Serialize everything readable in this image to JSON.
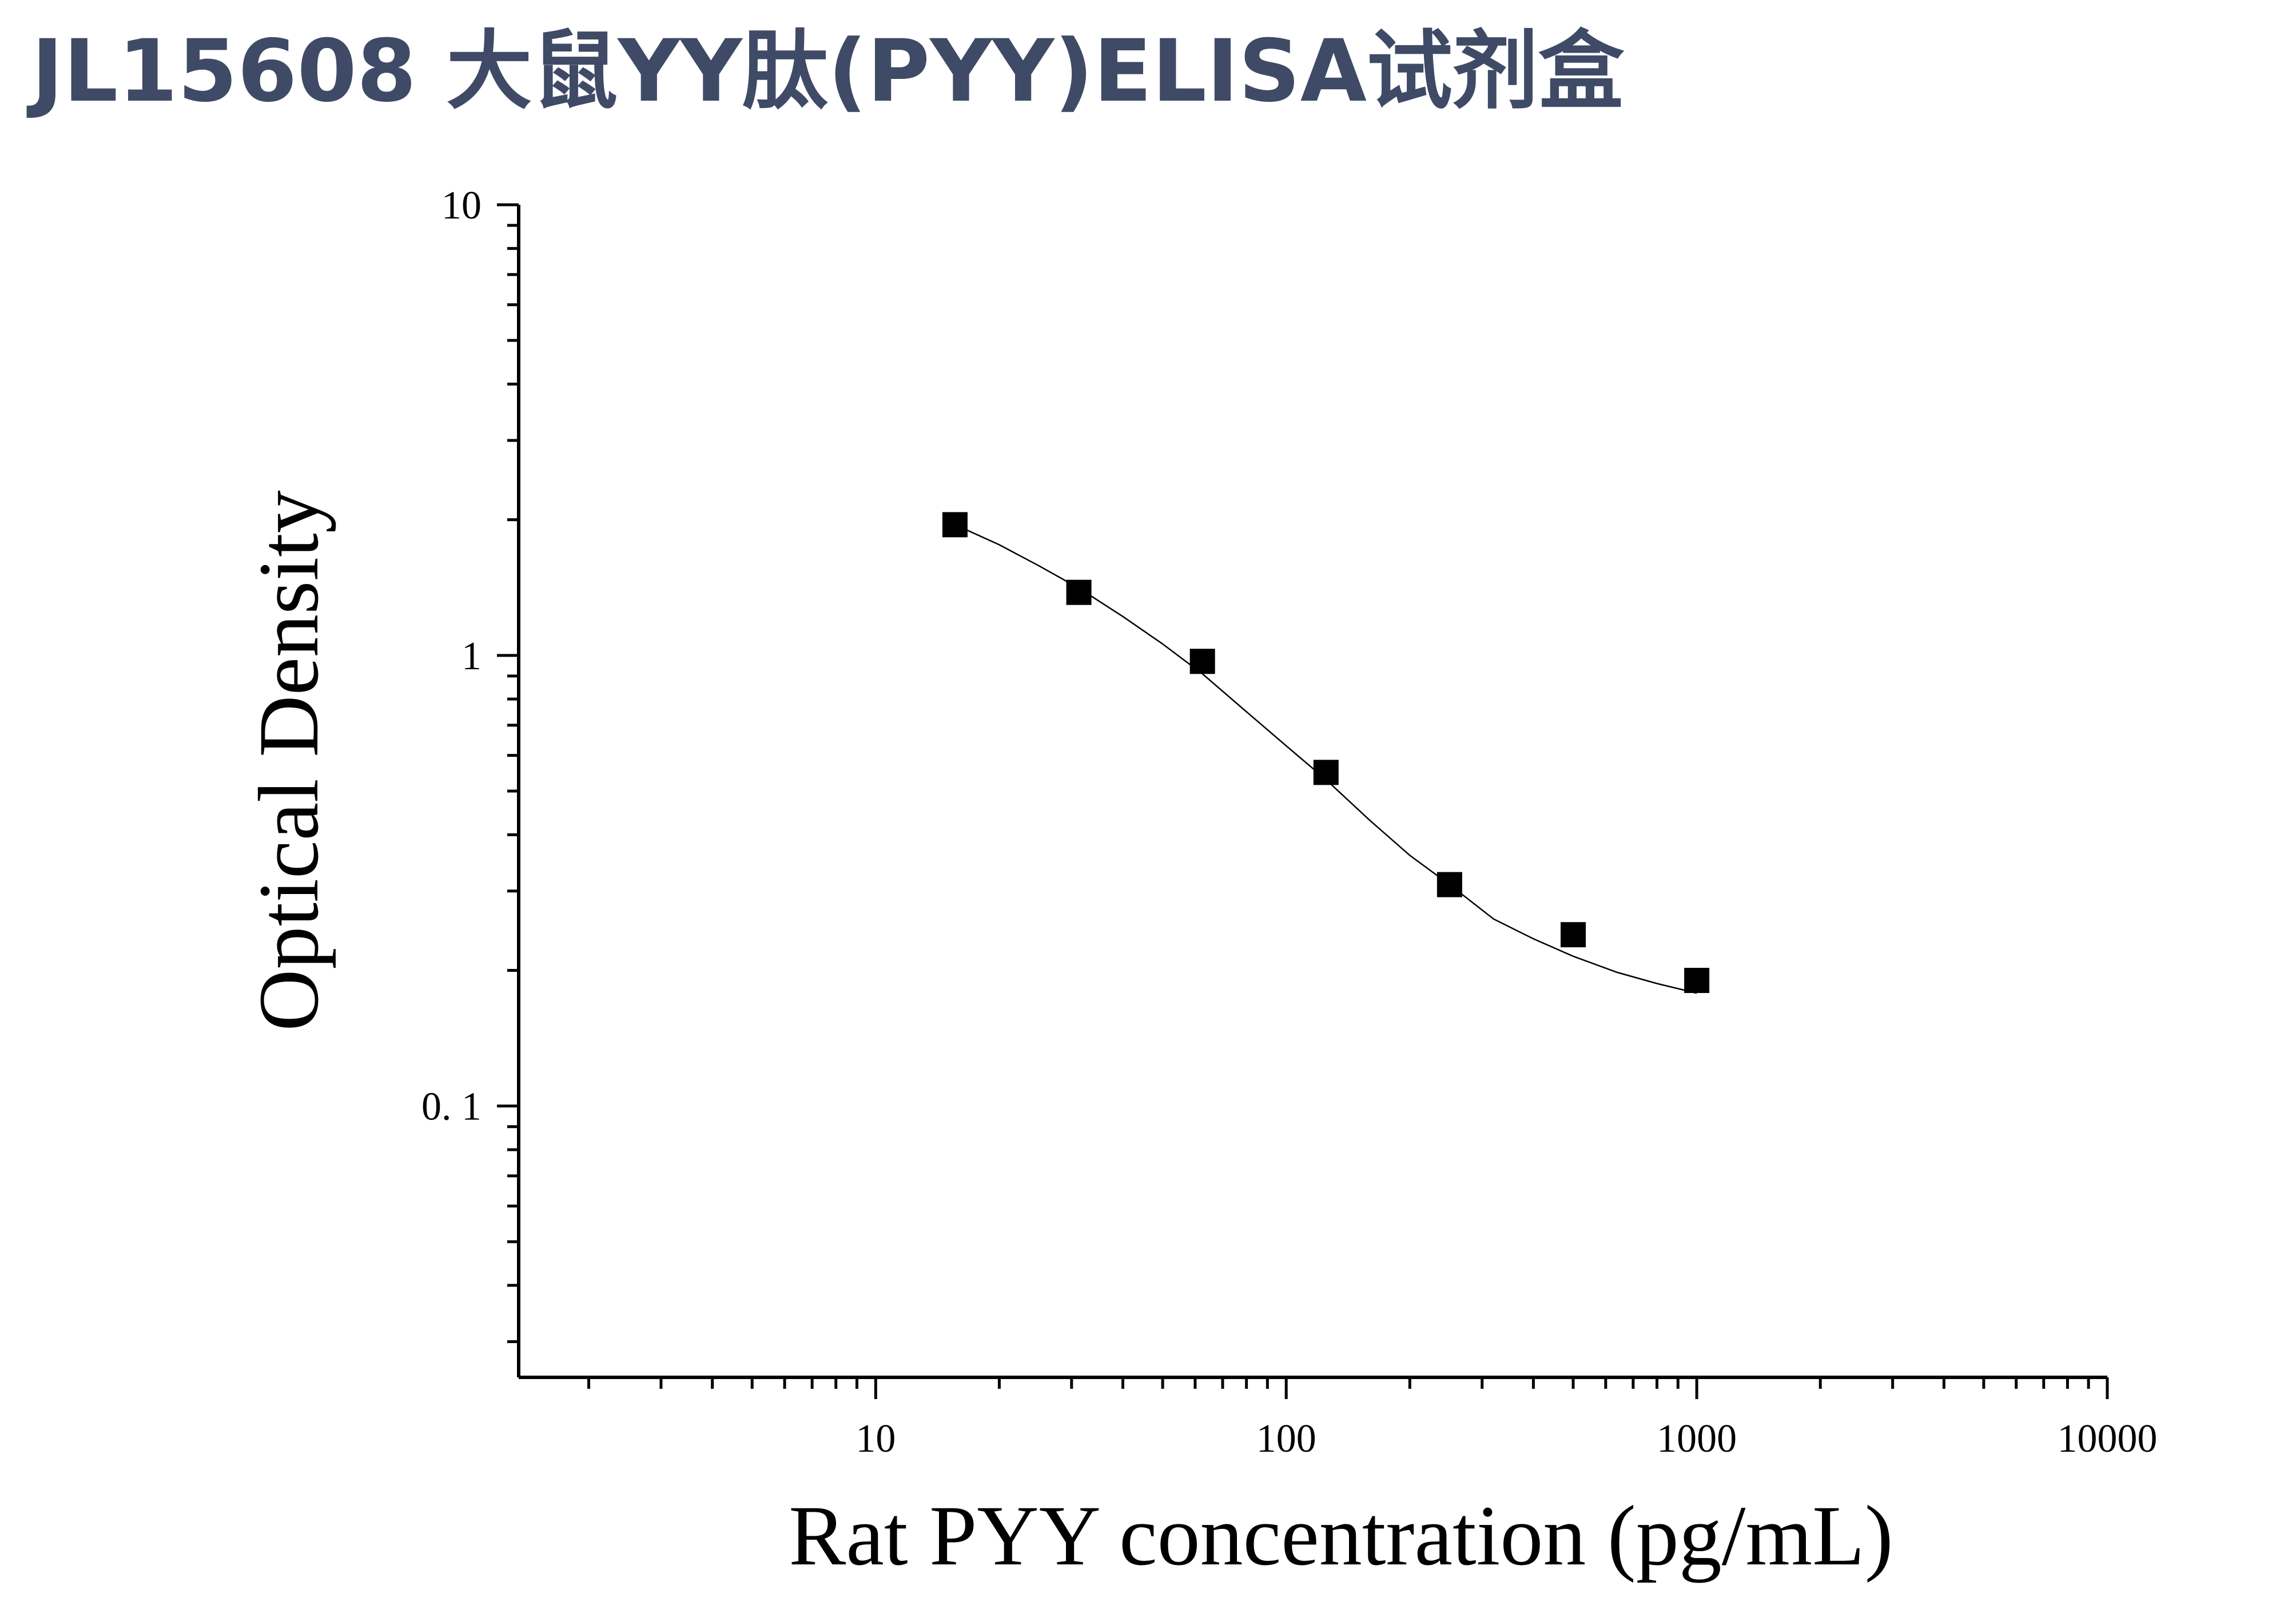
{
  "page": {
    "title": "JL15608 大鼠YY肽(PYY)ELISA试剂盒"
  },
  "chart_data": {
    "type": "scatter",
    "title": "",
    "xlabel": "Rat PYY concentration (pg/mL)",
    "ylabel": "Optical Density",
    "x_scale": "log",
    "y_scale": "log",
    "xlim": [
      1.35,
      10000
    ],
    "ylim": [
      0.025,
      10
    ],
    "x_tick_labels": [
      {
        "value": 10,
        "label": "10"
      },
      {
        "value": 100,
        "label": "100"
      },
      {
        "value": 1000,
        "label": "1000"
      },
      {
        "value": 10000,
        "label": "10000"
      }
    ],
    "y_tick_labels": [
      {
        "value": 0.1,
        "label": "0. 1"
      },
      {
        "value": 1,
        "label": "1"
      },
      {
        "value": 10,
        "label": "10"
      }
    ],
    "grid": false,
    "marker": "square",
    "series": [
      {
        "x": [
          15.6,
          31.25,
          62.5,
          125,
          250,
          500,
          1000
        ],
        "y": [
          1.95,
          1.38,
          0.97,
          0.55,
          0.31,
          0.24,
          0.19
        ]
      }
    ],
    "fit_curve": {
      "x": [
        15.6,
        20,
        25,
        31.25,
        40,
        50,
        62.5,
        80,
        100,
        125,
        160,
        200,
        250,
        320,
        400,
        500,
        640,
        800,
        1000
      ],
      "y": [
        1.95,
        1.76,
        1.58,
        1.41,
        1.22,
        1.06,
        0.91,
        0.75,
        0.63,
        0.53,
        0.43,
        0.36,
        0.31,
        0.26,
        0.235,
        0.215,
        0.198,
        0.187,
        0.178
      ]
    },
    "colors": {
      "title": "#3f4a66",
      "marks": "#000000"
    }
  }
}
